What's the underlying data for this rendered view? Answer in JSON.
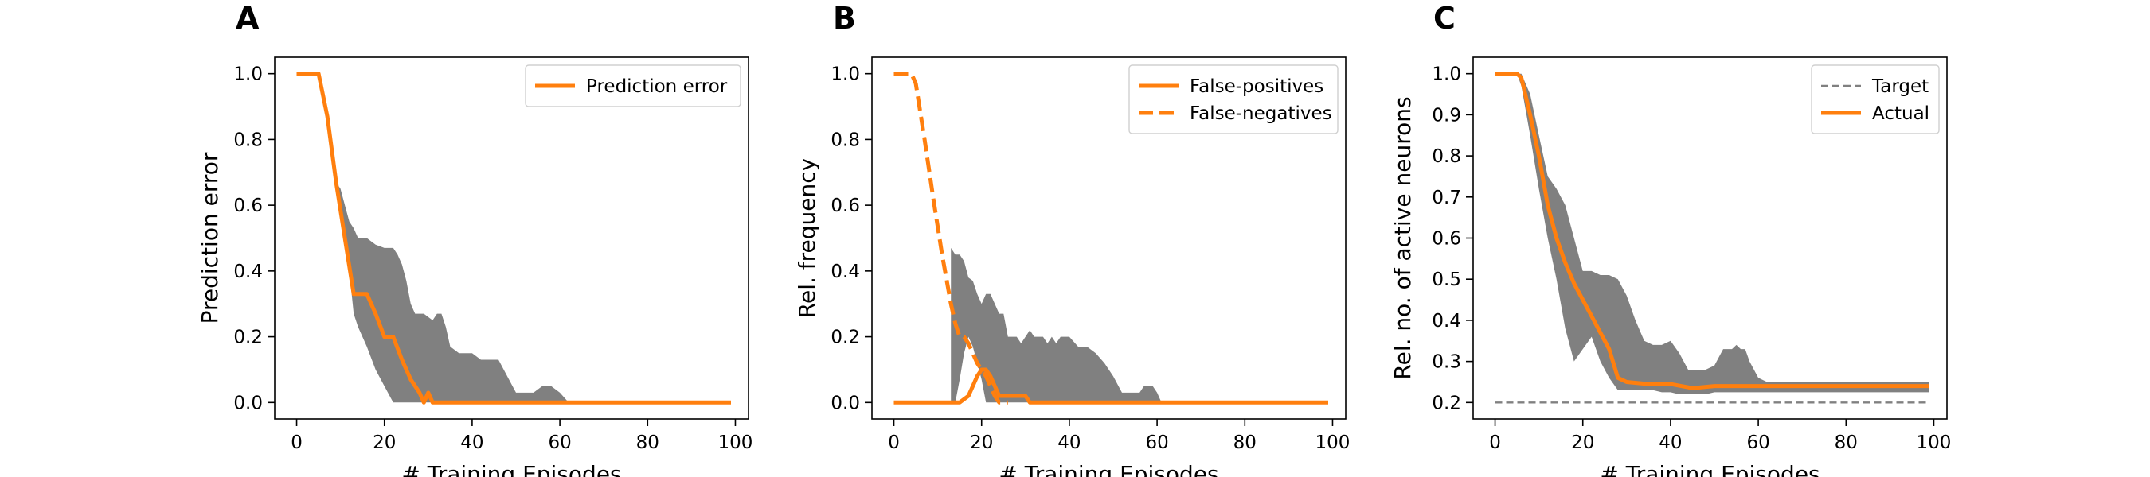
{
  "chart_data": [
    {
      "panel": "A",
      "type": "line",
      "xlabel": "# Training Episodes",
      "ylabel": "Prediction error",
      "xlim": [
        -5,
        103
      ],
      "ylim": [
        -0.05,
        1.05
      ],
      "xticks": [
        0,
        20,
        40,
        60,
        80,
        100
      ],
      "yticks": [
        0.0,
        0.2,
        0.4,
        0.6,
        0.8,
        1.0
      ],
      "ytick_labels": [
        "0.0",
        "0.2",
        "0.4",
        "0.6",
        "0.8",
        "1.0"
      ],
      "legend": {
        "placement": "upper-right",
        "entries": [
          "Prediction error"
        ]
      },
      "series": [
        {
          "name": "Prediction error",
          "color": "#ff7f0e",
          "style": "solid",
          "x": [
            0,
            2,
            4,
            5,
            7,
            9,
            11,
            13,
            15,
            16,
            18,
            20,
            22,
            24,
            26,
            28,
            29,
            30,
            31,
            32,
            33,
            34,
            36,
            40,
            50,
            60,
            70,
            80,
            90,
            99
          ],
          "y": [
            1.0,
            1.0,
            1.0,
            1.0,
            0.87,
            0.67,
            0.5,
            0.33,
            0.33,
            0.33,
            0.27,
            0.2,
            0.2,
            0.13,
            0.07,
            0.03,
            0.0,
            0.03,
            0.0,
            0.0,
            0.0,
            0.0,
            0.0,
            0.0,
            0.0,
            0.0,
            0.0,
            0.0,
            0.0,
            0.0
          ]
        }
      ],
      "bands": [
        {
          "color": "#808080",
          "x": [
            0,
            5,
            9,
            10,
            11,
            12,
            13,
            14,
            16,
            18,
            20,
            22,
            23,
            24,
            25,
            26,
            27,
            29,
            31,
            32,
            33,
            34,
            35,
            37,
            39,
            40,
            42,
            44,
            46,
            48,
            50,
            52,
            54,
            56,
            58,
            60,
            62,
            99
          ],
          "upper": [
            1.0,
            1.0,
            0.67,
            0.65,
            0.6,
            0.55,
            0.53,
            0.5,
            0.5,
            0.48,
            0.47,
            0.47,
            0.45,
            0.42,
            0.37,
            0.3,
            0.27,
            0.27,
            0.25,
            0.27,
            0.27,
            0.23,
            0.17,
            0.15,
            0.15,
            0.15,
            0.13,
            0.13,
            0.13,
            0.08,
            0.03,
            0.03,
            0.03,
            0.05,
            0.05,
            0.03,
            0.0,
            0.0
          ],
          "lower": [
            1.0,
            1.0,
            0.67,
            0.6,
            0.5,
            0.4,
            0.27,
            0.23,
            0.17,
            0.1,
            0.05,
            0.0,
            0.0,
            0.0,
            0.0,
            0.0,
            0.0,
            0.0,
            0.0,
            0.0,
            0.0,
            0.0,
            0.0,
            0.0,
            0.0,
            0.0,
            0.0,
            0.0,
            0.0,
            0.0,
            0.0,
            0.0,
            0.0,
            0.0,
            0.0,
            0.0,
            0.0,
            0.0
          ]
        }
      ]
    },
    {
      "panel": "B",
      "type": "line",
      "xlabel": "# Training Episodes",
      "ylabel": "Rel. frequency",
      "xlim": [
        -5,
        103
      ],
      "ylim": [
        -0.05,
        1.05
      ],
      "xticks": [
        0,
        20,
        40,
        60,
        80,
        100
      ],
      "yticks": [
        0.0,
        0.2,
        0.4,
        0.6,
        0.8,
        1.0
      ],
      "ytick_labels": [
        "0.0",
        "0.2",
        "0.4",
        "0.6",
        "0.8",
        "1.0"
      ],
      "legend": {
        "placement": "upper-right",
        "entries": [
          "False-positives",
          "False-negatives"
        ]
      },
      "series": [
        {
          "name": "False-positives",
          "color": "#ff7f0e",
          "style": "solid",
          "x": [
            0,
            5,
            10,
            15,
            17,
            18,
            19,
            20,
            21,
            22,
            23,
            24,
            25,
            26,
            28,
            30,
            31,
            32,
            40,
            50,
            60,
            70,
            80,
            90,
            99
          ],
          "y": [
            0.0,
            0.0,
            0.0,
            0.0,
            0.02,
            0.05,
            0.08,
            0.1,
            0.1,
            0.08,
            0.05,
            0.02,
            0.02,
            0.02,
            0.02,
            0.02,
            0.0,
            0.0,
            0.0,
            0.0,
            0.0,
            0.0,
            0.0,
            0.0,
            0.0
          ],
          "mask": [
            true,
            true,
            true,
            true,
            true,
            true,
            true,
            true,
            true,
            true,
            true,
            true,
            true,
            true,
            true,
            true,
            true,
            true,
            true,
            true,
            true,
            true,
            true,
            true,
            true
          ]
        },
        {
          "name": "False-negatives",
          "color": "#ff7f0e",
          "style": "dashed",
          "x": [
            0,
            2,
            4,
            5,
            7,
            9,
            11,
            13,
            14,
            15,
            16,
            17,
            18,
            19,
            20,
            21,
            22,
            23,
            24,
            25,
            26
          ],
          "y": [
            1.0,
            1.0,
            1.0,
            0.97,
            0.8,
            0.62,
            0.45,
            0.3,
            0.24,
            0.2,
            0.2,
            0.18,
            0.15,
            0.12,
            0.1,
            0.08,
            0.05,
            0.02,
            0.0,
            0.0,
            0.0
          ]
        }
      ],
      "bands": [
        {
          "color": "#808080",
          "x": [
            13,
            14,
            15,
            16,
            17,
            18,
            19,
            20,
            21,
            22,
            23,
            24,
            25,
            26,
            27,
            28,
            29,
            30,
            31,
            32,
            33,
            34,
            35,
            36,
            37,
            38,
            40,
            42,
            44,
            46,
            48,
            50,
            52,
            54,
            56,
            57,
            58,
            59,
            60,
            61
          ],
          "upper": [
            0.47,
            0.45,
            0.45,
            0.43,
            0.38,
            0.37,
            0.33,
            0.3,
            0.33,
            0.33,
            0.3,
            0.27,
            0.27,
            0.2,
            0.2,
            0.2,
            0.18,
            0.2,
            0.22,
            0.2,
            0.2,
            0.2,
            0.18,
            0.2,
            0.18,
            0.2,
            0.2,
            0.17,
            0.17,
            0.15,
            0.12,
            0.08,
            0.03,
            0.03,
            0.03,
            0.05,
            0.05,
            0.05,
            0.03,
            0.0
          ],
          "lower": [
            0.0,
            0.0,
            0.07,
            0.15,
            0.2,
            0.17,
            0.12,
            0.07,
            0.0,
            0.0,
            0.0,
            0.0,
            0.0,
            0.0,
            0.0,
            0.0,
            0.0,
            0.0,
            0.0,
            0.0,
            0.0,
            0.0,
            0.0,
            0.0,
            0.0,
            0.0,
            0.0,
            0.0,
            0.0,
            0.0,
            0.0,
            0.0,
            0.0,
            0.0,
            0.0,
            0.0,
            0.0,
            0.0,
            0.0,
            0.0
          ]
        }
      ]
    },
    {
      "panel": "C",
      "type": "line",
      "xlabel": "# Training Episodes",
      "ylabel": "Rel. no. of active neurons",
      "xlim": [
        -5,
        103
      ],
      "ylim": [
        0.16,
        1.04
      ],
      "xticks": [
        0,
        20,
        40,
        60,
        80,
        100
      ],
      "yticks": [
        0.2,
        0.3,
        0.4,
        0.5,
        0.6,
        0.7,
        0.8,
        0.9,
        1.0
      ],
      "ytick_labels": [
        "0.2",
        "0.3",
        "0.4",
        "0.5",
        "0.6",
        "0.7",
        "0.8",
        "0.9",
        "1.0"
      ],
      "legend": {
        "placement": "upper-right",
        "entries": [
          "Target",
          "Actual"
        ]
      },
      "series": [
        {
          "name": "Target",
          "color": "#808080",
          "style": "dashed",
          "x": [
            0,
            99
          ],
          "y": [
            0.2,
            0.2
          ]
        },
        {
          "name": "Actual",
          "color": "#ff7f0e",
          "style": "solid",
          "x": [
            0,
            2,
            4,
            5,
            6,
            8,
            10,
            12,
            14,
            16,
            18,
            20,
            22,
            24,
            26,
            28,
            30,
            35,
            40,
            45,
            50,
            60,
            70,
            80,
            90,
            99
          ],
          "y": [
            1.0,
            1.0,
            1.0,
            1.0,
            0.99,
            0.9,
            0.8,
            0.68,
            0.6,
            0.54,
            0.49,
            0.45,
            0.41,
            0.37,
            0.33,
            0.26,
            0.25,
            0.245,
            0.245,
            0.235,
            0.24,
            0.24,
            0.24,
            0.24,
            0.24,
            0.24
          ]
        }
      ],
      "bands": [
        {
          "color": "#808080",
          "x": [
            0,
            5,
            6,
            8,
            10,
            12,
            14,
            16,
            18,
            20,
            22,
            24,
            26,
            28,
            30,
            32,
            34,
            36,
            38,
            40,
            42,
            44,
            46,
            48,
            50,
            52,
            54,
            55,
            56,
            57,
            58,
            60,
            62,
            99
          ],
          "upper": [
            1.0,
            1.0,
            1.0,
            0.95,
            0.85,
            0.75,
            0.72,
            0.68,
            0.6,
            0.52,
            0.52,
            0.51,
            0.51,
            0.5,
            0.46,
            0.4,
            0.35,
            0.34,
            0.34,
            0.35,
            0.32,
            0.28,
            0.28,
            0.28,
            0.29,
            0.33,
            0.33,
            0.34,
            0.33,
            0.33,
            0.3,
            0.26,
            0.25,
            0.25
          ],
          "lower": [
            1.0,
            1.0,
            0.97,
            0.85,
            0.72,
            0.6,
            0.5,
            0.38,
            0.3,
            0.33,
            0.36,
            0.3,
            0.26,
            0.23,
            0.23,
            0.23,
            0.23,
            0.23,
            0.225,
            0.225,
            0.22,
            0.22,
            0.22,
            0.22,
            0.225,
            0.225,
            0.225,
            0.225,
            0.225,
            0.225,
            0.225,
            0.225,
            0.225,
            0.225
          ]
        }
      ]
    }
  ]
}
